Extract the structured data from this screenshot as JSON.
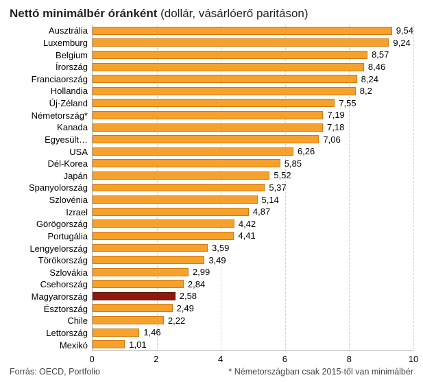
{
  "title_bold": "Nettó minimálbér óránként",
  "title_rest": " (dollár, vásárlóerő paritáson)",
  "chart": {
    "type": "bar",
    "orientation": "horizontal",
    "xmin": 0,
    "xmax": 10,
    "xtick_step": 2,
    "xticks": [
      0,
      2,
      4,
      6,
      8,
      10
    ],
    "bar_fill": "#f7a12d",
    "bar_border": "#d17a0a",
    "highlight_fill": "#8d1a0b",
    "highlight_border": "#600f05",
    "grid_color": "#c8c8c8",
    "axis_color": "#b5b5b5",
    "background": "#ffffff",
    "label_fontsize": 13,
    "title_fontsize": 17,
    "rows": [
      {
        "label": "Ausztrália",
        "value": 9.54,
        "display": "9,54",
        "highlight": false
      },
      {
        "label": "Luxemburg",
        "value": 9.24,
        "display": "9,24",
        "highlight": false
      },
      {
        "label": "Belgium",
        "value": 8.57,
        "display": "8,57",
        "highlight": false
      },
      {
        "label": "Írország",
        "value": 8.46,
        "display": "8,46",
        "highlight": false
      },
      {
        "label": "Franciaország",
        "value": 8.24,
        "display": "8,24",
        "highlight": false
      },
      {
        "label": "Hollandia",
        "value": 8.2,
        "display": "8,2",
        "highlight": false
      },
      {
        "label": "Új-Zéland",
        "value": 7.55,
        "display": "7,55",
        "highlight": false
      },
      {
        "label": "Németország*",
        "value": 7.19,
        "display": "7,19",
        "highlight": false
      },
      {
        "label": "Kanada",
        "value": 7.18,
        "display": "7,18",
        "highlight": false
      },
      {
        "label": "Egyesült…",
        "value": 7.06,
        "display": "7,06",
        "highlight": false
      },
      {
        "label": "USA",
        "value": 6.26,
        "display": "6,26",
        "highlight": false
      },
      {
        "label": "Dél-Korea",
        "value": 5.85,
        "display": "5,85",
        "highlight": false
      },
      {
        "label": "Japán",
        "value": 5.52,
        "display": "5,52",
        "highlight": false
      },
      {
        "label": "Spanyolország",
        "value": 5.37,
        "display": "5,37",
        "highlight": false
      },
      {
        "label": "Szlovénia",
        "value": 5.14,
        "display": "5,14",
        "highlight": false
      },
      {
        "label": "Izrael",
        "value": 4.87,
        "display": "4,87",
        "highlight": false
      },
      {
        "label": "Görögország",
        "value": 4.42,
        "display": "4,42",
        "highlight": false
      },
      {
        "label": "Portugália",
        "value": 4.41,
        "display": "4,41",
        "highlight": false
      },
      {
        "label": "Lengyelország",
        "value": 3.59,
        "display": "3,59",
        "highlight": false
      },
      {
        "label": "Törökország",
        "value": 3.49,
        "display": "3,49",
        "highlight": false
      },
      {
        "label": "Szlovákia",
        "value": 2.99,
        "display": "2,99",
        "highlight": false
      },
      {
        "label": "Csehország",
        "value": 2.84,
        "display": "2,84",
        "highlight": false
      },
      {
        "label": "Magyarország",
        "value": 2.58,
        "display": "2,58",
        "highlight": true
      },
      {
        "label": "Észtország",
        "value": 2.49,
        "display": "2,49",
        "highlight": false
      },
      {
        "label": "Chile",
        "value": 2.22,
        "display": "2,22",
        "highlight": false
      },
      {
        "label": "Lettország",
        "value": 1.46,
        "display": "1,46",
        "highlight": false
      },
      {
        "label": "Mexikó",
        "value": 1.01,
        "display": "1,01",
        "highlight": false
      }
    ]
  },
  "footer_left": "Forrás: OECD, Portfolio",
  "footer_right": "* Németországban csak 2015-től van minimálbér"
}
